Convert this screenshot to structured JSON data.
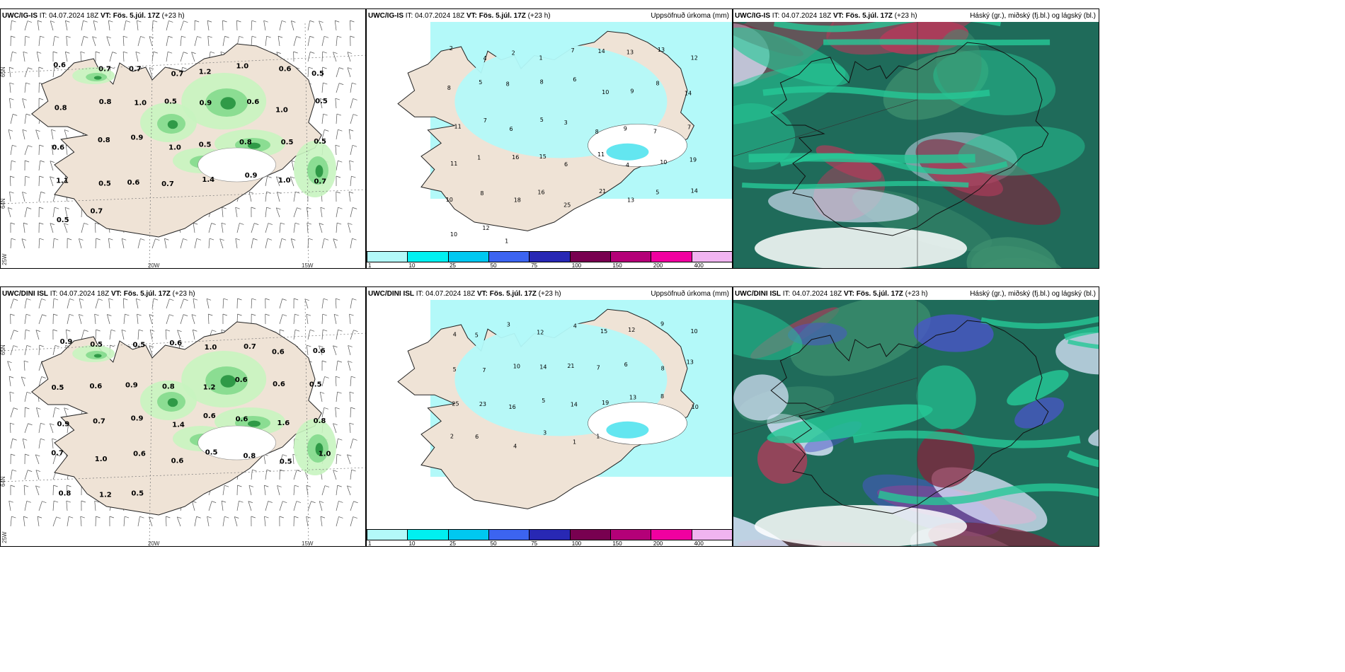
{
  "rows": [
    {
      "model": "UWC/IG-IS",
      "it": "IT: 04.07.2024 18Z",
      "vt": "VT: Fös. 5.júl. 17Z",
      "lead": "(+23 h)",
      "wind_labels": [
        "0.6",
        "0.7",
        "0.7",
        "0.7",
        "1.2",
        "1.0",
        "0.6",
        "0.5",
        "0.8",
        "0.8",
        "1.0",
        "0.5",
        "0.9",
        "0.6",
        "1.0",
        "0.5",
        "0.6",
        "0.8",
        "0.9",
        "1.0",
        "0.5",
        "0.8",
        "0.5",
        "0.5",
        "1.1",
        "0.5",
        "0.6",
        "0.7",
        "1.4",
        "0.9",
        "1.0",
        "0.7",
        "0.5",
        "0.7"
      ],
      "axis": {
        "lat_top": "65N",
        "lat_bot": "64N",
        "lon_left": "20W",
        "lon_right": "15W",
        "lon_corner": "25W"
      },
      "precip_labels": [
        "2",
        "4",
        "2",
        "1",
        "7",
        "14",
        "13",
        "13",
        "12",
        "8",
        "5",
        "8",
        "8",
        "6",
        "10",
        "9",
        "8",
        "14",
        "11",
        "7",
        "6",
        "5",
        "3",
        "8",
        "9",
        "7",
        "7",
        "11",
        "1",
        "16",
        "15",
        "6",
        "11",
        "4",
        "10",
        "19",
        "10",
        "8",
        "18",
        "16",
        "25",
        "21",
        "13",
        "5",
        "14",
        "10",
        "12",
        "1"
      ]
    },
    {
      "model": "UWC/DINI ISL",
      "it": "IT: 04.07.2024 18Z",
      "vt": "VT: Fös. 5.júl. 17Z",
      "lead": "(+23 h)",
      "wind_labels": [
        "0.9",
        "0.5",
        "0.5",
        "0.6",
        "1.0",
        "0.7",
        "0.6",
        "0.6",
        "0.5",
        "0.6",
        "0.9",
        "0.8",
        "1.2",
        "0.6",
        "0.6",
        "0.5",
        "0.9",
        "0.7",
        "0.9",
        "1.4",
        "0.6",
        "0.6",
        "1.6",
        "0.8",
        "0.7",
        "1.0",
        "0.6",
        "0.6",
        "0.5",
        "0.8",
        "0.5",
        "1.0",
        "0.8",
        "1.2",
        "0.5"
      ],
      "axis": {
        "lat_top": "65N",
        "lat_bot": "64N",
        "lon_left": "20W",
        "lon_right": "15W",
        "lon_corner": "25W"
      },
      "precip_labels": [
        "4",
        "5",
        "3",
        "12",
        "4",
        "15",
        "12",
        "9",
        "10",
        "5",
        "7",
        "10",
        "14",
        "21",
        "7",
        "6",
        "8",
        "13",
        "25",
        "23",
        "16",
        "5",
        "14",
        "19",
        "13",
        "8",
        "10",
        "2",
        "6",
        "4",
        "3",
        "1",
        "1"
      ]
    }
  ],
  "precip_title": "Uppsöfnuð úrkoma (mm)",
  "cloud_title": "Háský (gr.), miðský (fj.bl.) og lágský (bl.)",
  "colorbar": {
    "ticks": [
      "1",
      "10",
      "25",
      "50",
      "75",
      "100",
      "150",
      "200",
      "400"
    ],
    "colors": [
      "#b3f9f9",
      "#00f0f0",
      "#00c8f0",
      "#3c64f0",
      "#2828b4",
      "#780050",
      "#b40078",
      "#f000a0",
      "#f0b4f0"
    ]
  },
  "colors": {
    "land": "#efe3d6",
    "sea": "#ffffff",
    "precip_light": "#b3f9f9",
    "green1": "#c8f4c0",
    "green2": "#7fd88a",
    "green3": "#2f9a47",
    "cloud_teal": "#1f6b5a",
    "cloud_mint": "#25c896",
    "cloud_red": "#8a1d3a",
    "cloud_blue": "#4a55c8"
  }
}
